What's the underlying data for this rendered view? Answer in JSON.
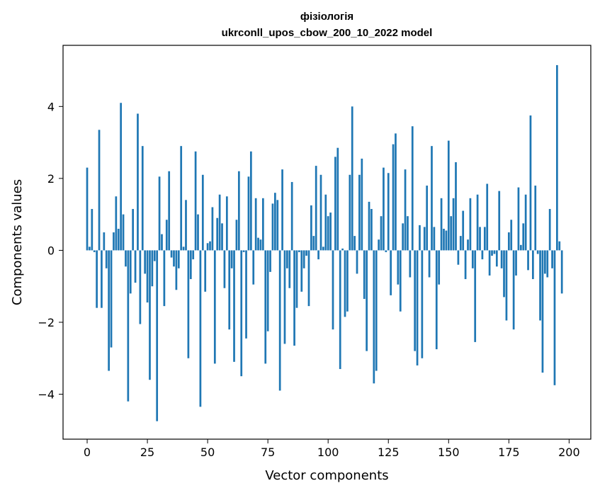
{
  "chart_data": {
    "type": "bar",
    "title_line1": "фізіологія",
    "title_line2": "ukrconll_upos_cbow_200_10_2022 model",
    "xlabel": "Vector components",
    "ylabel": "Components values",
    "xlim": [
      -10,
      209
    ],
    "ylim": [
      -5.25,
      5.7
    ],
    "xticks": [
      0,
      25,
      50,
      75,
      100,
      125,
      150,
      175,
      200
    ],
    "xtick_labels": [
      "0",
      "25",
      "50",
      "75",
      "100",
      "125",
      "150",
      "175",
      "200"
    ],
    "yticks": [
      -4,
      -2,
      0,
      2,
      4
    ],
    "ytick_labels": [
      "−4",
      "−2",
      "0",
      "2",
      "4"
    ],
    "bar_color": "#1f77b4",
    "grid": false,
    "values": [
      2.3,
      0.1,
      1.15,
      -0.05,
      -1.6,
      3.35,
      -1.6,
      0.5,
      -0.5,
      -3.35,
      -2.7,
      0.5,
      1.5,
      0.6,
      4.1,
      1.0,
      -0.45,
      -4.2,
      -1.2,
      1.15,
      -0.9,
      3.8,
      -2.05,
      2.9,
      -0.65,
      -1.45,
      -3.6,
      -1.0,
      -0.3,
      -4.75,
      2.05,
      0.45,
      -1.55,
      0.85,
      2.2,
      -0.2,
      -0.45,
      -1.1,
      -0.5,
      2.9,
      0.1,
      1.4,
      -3.0,
      -0.8,
      -0.25,
      2.75,
      1.0,
      -4.35,
      2.1,
      -1.15,
      0.2,
      0.25,
      1.2,
      -3.15,
      0.9,
      1.55,
      0.75,
      -1.05,
      1.5,
      -2.2,
      -0.5,
      -3.1,
      0.85,
      2.2,
      -3.5,
      -0.05,
      -2.45,
      2.05,
      2.75,
      -0.95,
      1.45,
      0.35,
      0.3,
      1.45,
      -3.15,
      -2.25,
      -0.6,
      1.3,
      1.6,
      1.4,
      -3.9,
      2.25,
      -2.6,
      -0.5,
      -1.05,
      1.9,
      -2.65,
      -1.6,
      -0.05,
      -1.15,
      -0.5,
      -0.15,
      -1.55,
      1.25,
      0.4,
      2.35,
      -0.25,
      2.1,
      0.1,
      1.55,
      0.95,
      1.05,
      -2.2,
      2.6,
      2.85,
      -3.3,
      0.05,
      -1.85,
      -1.7,
      2.1,
      4.0,
      0.4,
      -0.65,
      2.1,
      2.55,
      -1.35,
      -2.8,
      1.35,
      1.15,
      -3.7,
      -3.35,
      0.3,
      0.95,
      2.3,
      -0.05,
      2.15,
      -1.25,
      2.95,
      3.25,
      -0.95,
      -1.7,
      0.75,
      2.25,
      0.95,
      -0.75,
      3.45,
      -2.8,
      -3.2,
      0.7,
      -3.0,
      0.65,
      1.8,
      -0.75,
      2.9,
      0.65,
      -2.75,
      -0.95,
      1.45,
      0.6,
      0.55,
      3.05,
      0.95,
      1.45,
      2.45,
      -0.4,
      0.4,
      1.1,
      -0.8,
      0.3,
      1.45,
      -0.5,
      -2.55,
      1.55,
      0.65,
      -0.25,
      0.65,
      1.85,
      -0.7,
      -0.15,
      -0.1,
      -0.45,
      1.65,
      -0.5,
      -1.3,
      -1.95,
      0.5,
      0.85,
      -2.2,
      -0.7,
      1.75,
      0.15,
      0.75,
      1.55,
      -0.55,
      3.75,
      -0.8,
      1.8,
      -0.1,
      -1.95,
      -3.4,
      -0.65,
      -0.75,
      1.15,
      -0.5,
      -3.75,
      5.15,
      0.25,
      -1.2
    ]
  }
}
